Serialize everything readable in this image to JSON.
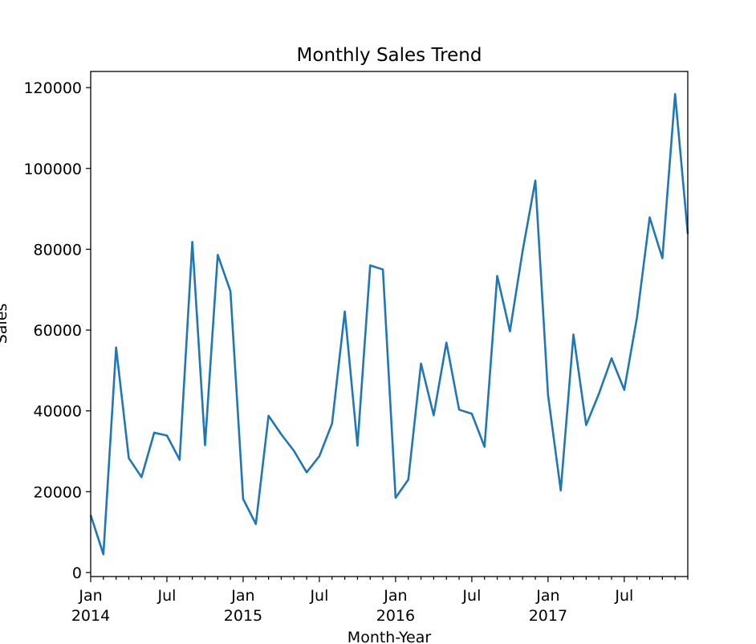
{
  "chart_data": {
    "type": "line",
    "title": "Monthly Sales Trend",
    "xlabel": "Month-Year",
    "ylabel": "Sales",
    "x": [
      "2014-01",
      "2014-02",
      "2014-03",
      "2014-04",
      "2014-05",
      "2014-06",
      "2014-07",
      "2014-08",
      "2014-09",
      "2014-10",
      "2014-11",
      "2014-12",
      "2015-01",
      "2015-02",
      "2015-03",
      "2015-04",
      "2015-05",
      "2015-06",
      "2015-07",
      "2015-08",
      "2015-09",
      "2015-10",
      "2015-11",
      "2015-12",
      "2016-01",
      "2016-02",
      "2016-03",
      "2016-04",
      "2016-05",
      "2016-06",
      "2016-07",
      "2016-08",
      "2016-09",
      "2016-10",
      "2016-11",
      "2016-12",
      "2017-01",
      "2017-02",
      "2017-03",
      "2017-04",
      "2017-05",
      "2017-06",
      "2017-07",
      "2017-08",
      "2017-09",
      "2017-10",
      "2017-11",
      "2017-12"
    ],
    "series": [
      {
        "color": "#1f77b4",
        "values": [
          14200,
          4500,
          55700,
          28300,
          23600,
          34600,
          33900,
          27900,
          81800,
          31500,
          78600,
          69600,
          18200,
          12000,
          38800,
          34200,
          30100,
          24800,
          28800,
          36900,
          64600,
          31400,
          76000,
          75000,
          18500,
          23000,
          51700,
          38900,
          56900,
          40300,
          39300,
          31100,
          73400,
          59700,
          79600,
          97000,
          43900,
          20300,
          58900,
          36500,
          44200,
          53000,
          45200,
          63100,
          87900,
          77800,
          118400,
          83800
        ]
      }
    ],
    "xlim": [
      "2014-01",
      "2017-12"
    ],
    "ylim": [
      -1000,
      124000
    ],
    "yticks": [
      0,
      20000,
      40000,
      60000,
      80000,
      100000,
      120000
    ],
    "ytick_labels": [
      "0",
      "20000",
      "40000",
      "60000",
      "80000",
      "100000",
      "120000"
    ],
    "xticks": [
      {
        "month": "2014-01",
        "label": "Jan",
        "year": "2014"
      },
      {
        "month": "2014-07",
        "label": "Jul",
        "year": ""
      },
      {
        "month": "2015-01",
        "label": "Jan",
        "year": "2015"
      },
      {
        "month": "2015-07",
        "label": "Jul",
        "year": ""
      },
      {
        "month": "2016-01",
        "label": "Jan",
        "year": "2016"
      },
      {
        "month": "2016-07",
        "label": "Jul",
        "year": ""
      },
      {
        "month": "2017-01",
        "label": "Jan",
        "year": "2017"
      },
      {
        "month": "2017-07",
        "label": "Jul",
        "year": ""
      }
    ],
    "grid": false,
    "legend": false
  }
}
